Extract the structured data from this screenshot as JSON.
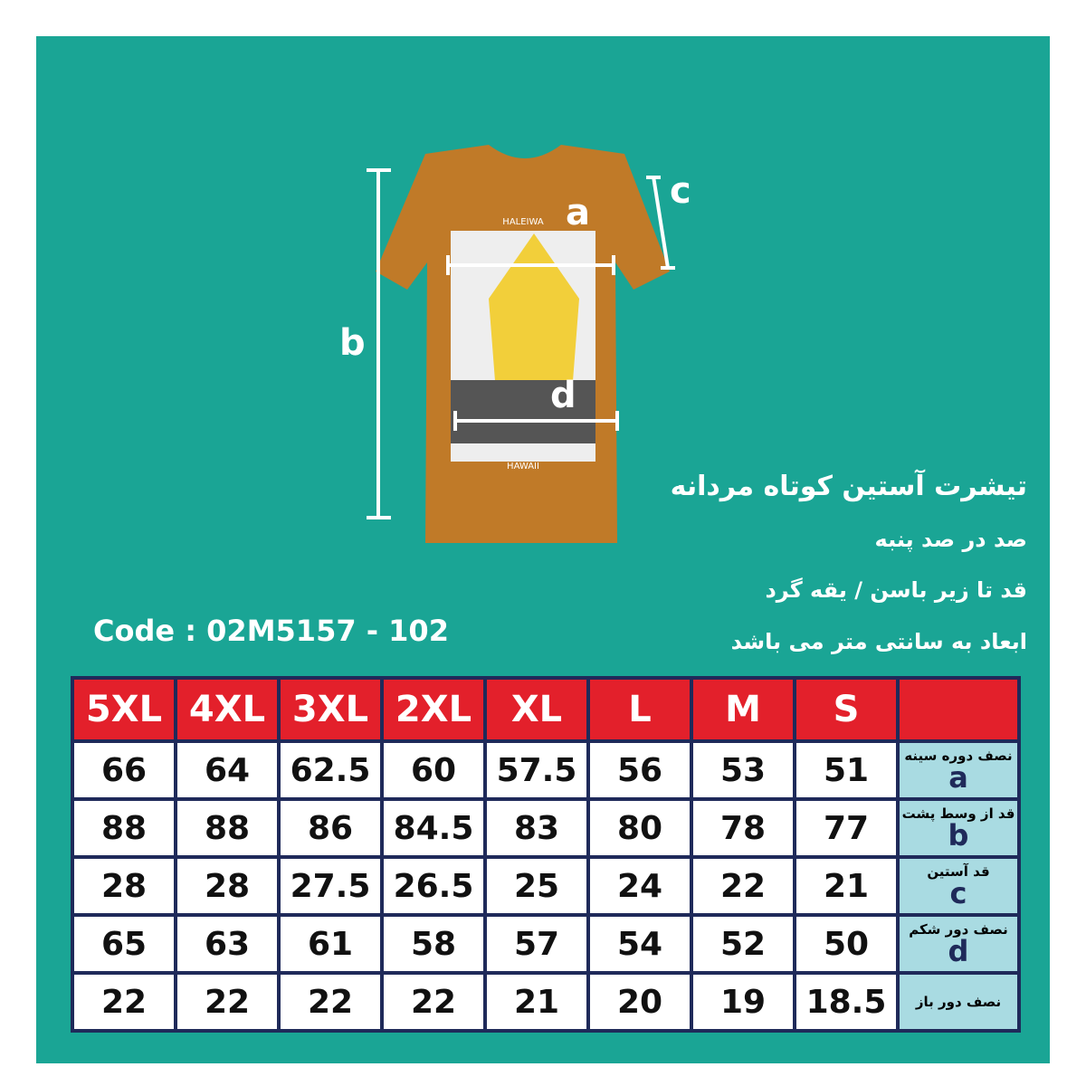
{
  "diagram": {
    "labels": {
      "a": "a",
      "b": "b",
      "c": "c",
      "d": "d"
    },
    "print_top": "HALEIWA",
    "print_bottom": "HAWAII"
  },
  "description": [
    "تیشرت آستین کوتاه مردانه",
    "صد در صد پنبه",
    "قد تا زیر باسن / یقه گرد",
    "ابعاد به سانتی متر می باشد"
  ],
  "code": "Code : 02M5157 - 102",
  "table": {
    "sizes": [
      "5XL",
      "4XL",
      "3XL",
      "2XL",
      "XL",
      "L",
      "M",
      "S"
    ],
    "rows": [
      {
        "label": "نصف دوره سینه",
        "letter": "a",
        "values": [
          66,
          64,
          62.5,
          60,
          57.5,
          56,
          53,
          51
        ]
      },
      {
        "label": "قد از وسط پشت",
        "letter": "b",
        "values": [
          88,
          88,
          86,
          84.5,
          83,
          80,
          78,
          77
        ]
      },
      {
        "label": "قد آستین",
        "letter": "c",
        "values": [
          28,
          28,
          27.5,
          26.5,
          25,
          24,
          22,
          21
        ]
      },
      {
        "label": "نصف دور شکم",
        "letter": "d",
        "values": [
          65,
          63,
          61,
          58,
          57,
          54,
          52,
          50
        ]
      },
      {
        "label": "نصف دور باز",
        "values": [
          22,
          22,
          22,
          22,
          21,
          20,
          19,
          18.5
        ]
      }
    ]
  }
}
